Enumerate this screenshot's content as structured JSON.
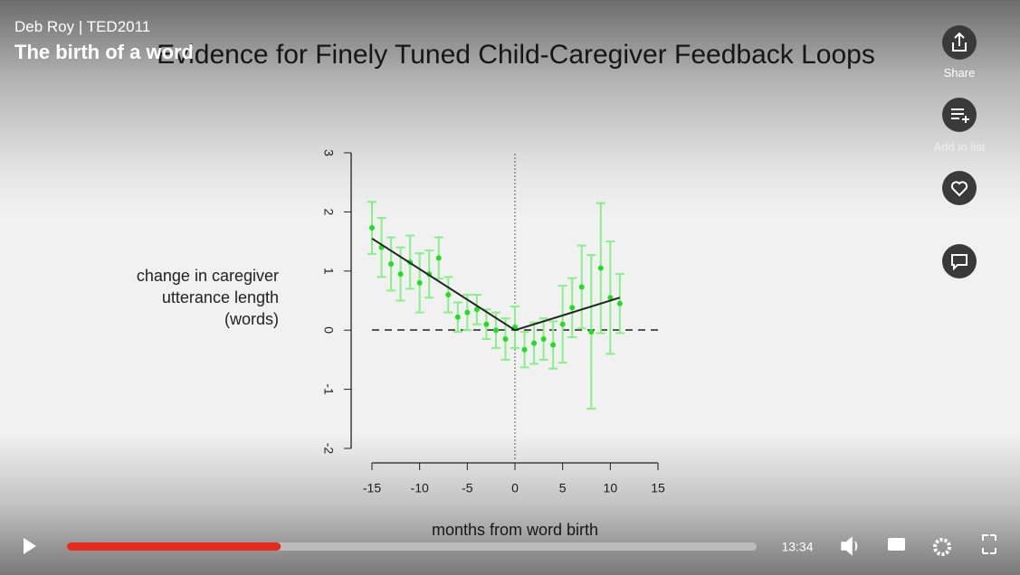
{
  "header": {
    "speaker": "Deb Roy | TED2011",
    "title": "The birth of a word"
  },
  "sidebar": {
    "share": "Share",
    "add_to_list": "Add to list"
  },
  "controls": {
    "time": "13:34",
    "progress": 0.31
  },
  "chart_data": {
    "type": "scatter",
    "title": "Evidence for Finely Tuned Child-Caregiver Feedback Loops",
    "y_label": [
      "change in caregiver",
      "utterance length",
      "(words)"
    ],
    "x_label": "months from word birth",
    "xlim": [
      -15,
      15
    ],
    "xticks": [
      -15,
      -10,
      -5,
      0,
      5,
      10,
      15
    ],
    "ylim": [
      -2,
      3
    ],
    "yticks": [
      -2,
      -1,
      0,
      1,
      2,
      3
    ],
    "series": [
      {
        "color": "#22dd22",
        "errcolor": "#88f088",
        "x": [
          -15,
          -14,
          -13,
          -12,
          -11,
          -10,
          -9,
          -8,
          -7,
          -6,
          -5,
          -4,
          -3,
          -2,
          -1,
          0,
          1,
          2,
          3,
          4,
          5,
          6,
          7,
          8,
          9,
          10,
          11
        ],
        "values": [
          1.73,
          1.4,
          1.12,
          0.95,
          1.15,
          0.8,
          0.95,
          1.22,
          0.6,
          0.22,
          0.3,
          0.35,
          0.1,
          0.0,
          -0.15,
          0.05,
          -0.33,
          -0.22,
          -0.15,
          -0.25,
          0.1,
          0.38,
          0.73,
          -0.03,
          1.05,
          0.55,
          0.45
        ],
        "errors": [
          0.44,
          0.5,
          0.45,
          0.45,
          0.45,
          0.5,
          0.4,
          0.35,
          0.3,
          0.25,
          0.3,
          0.25,
          0.25,
          0.3,
          0.35,
          0.35,
          0.3,
          0.35,
          0.35,
          0.4,
          0.65,
          0.5,
          0.7,
          1.3,
          1.1,
          0.95,
          0.5
        ]
      },
      {
        "type": "line",
        "color": "#222222",
        "x": [
          -15,
          0,
          11
        ],
        "values": [
          1.55,
          0,
          0.55
        ]
      }
    ]
  }
}
